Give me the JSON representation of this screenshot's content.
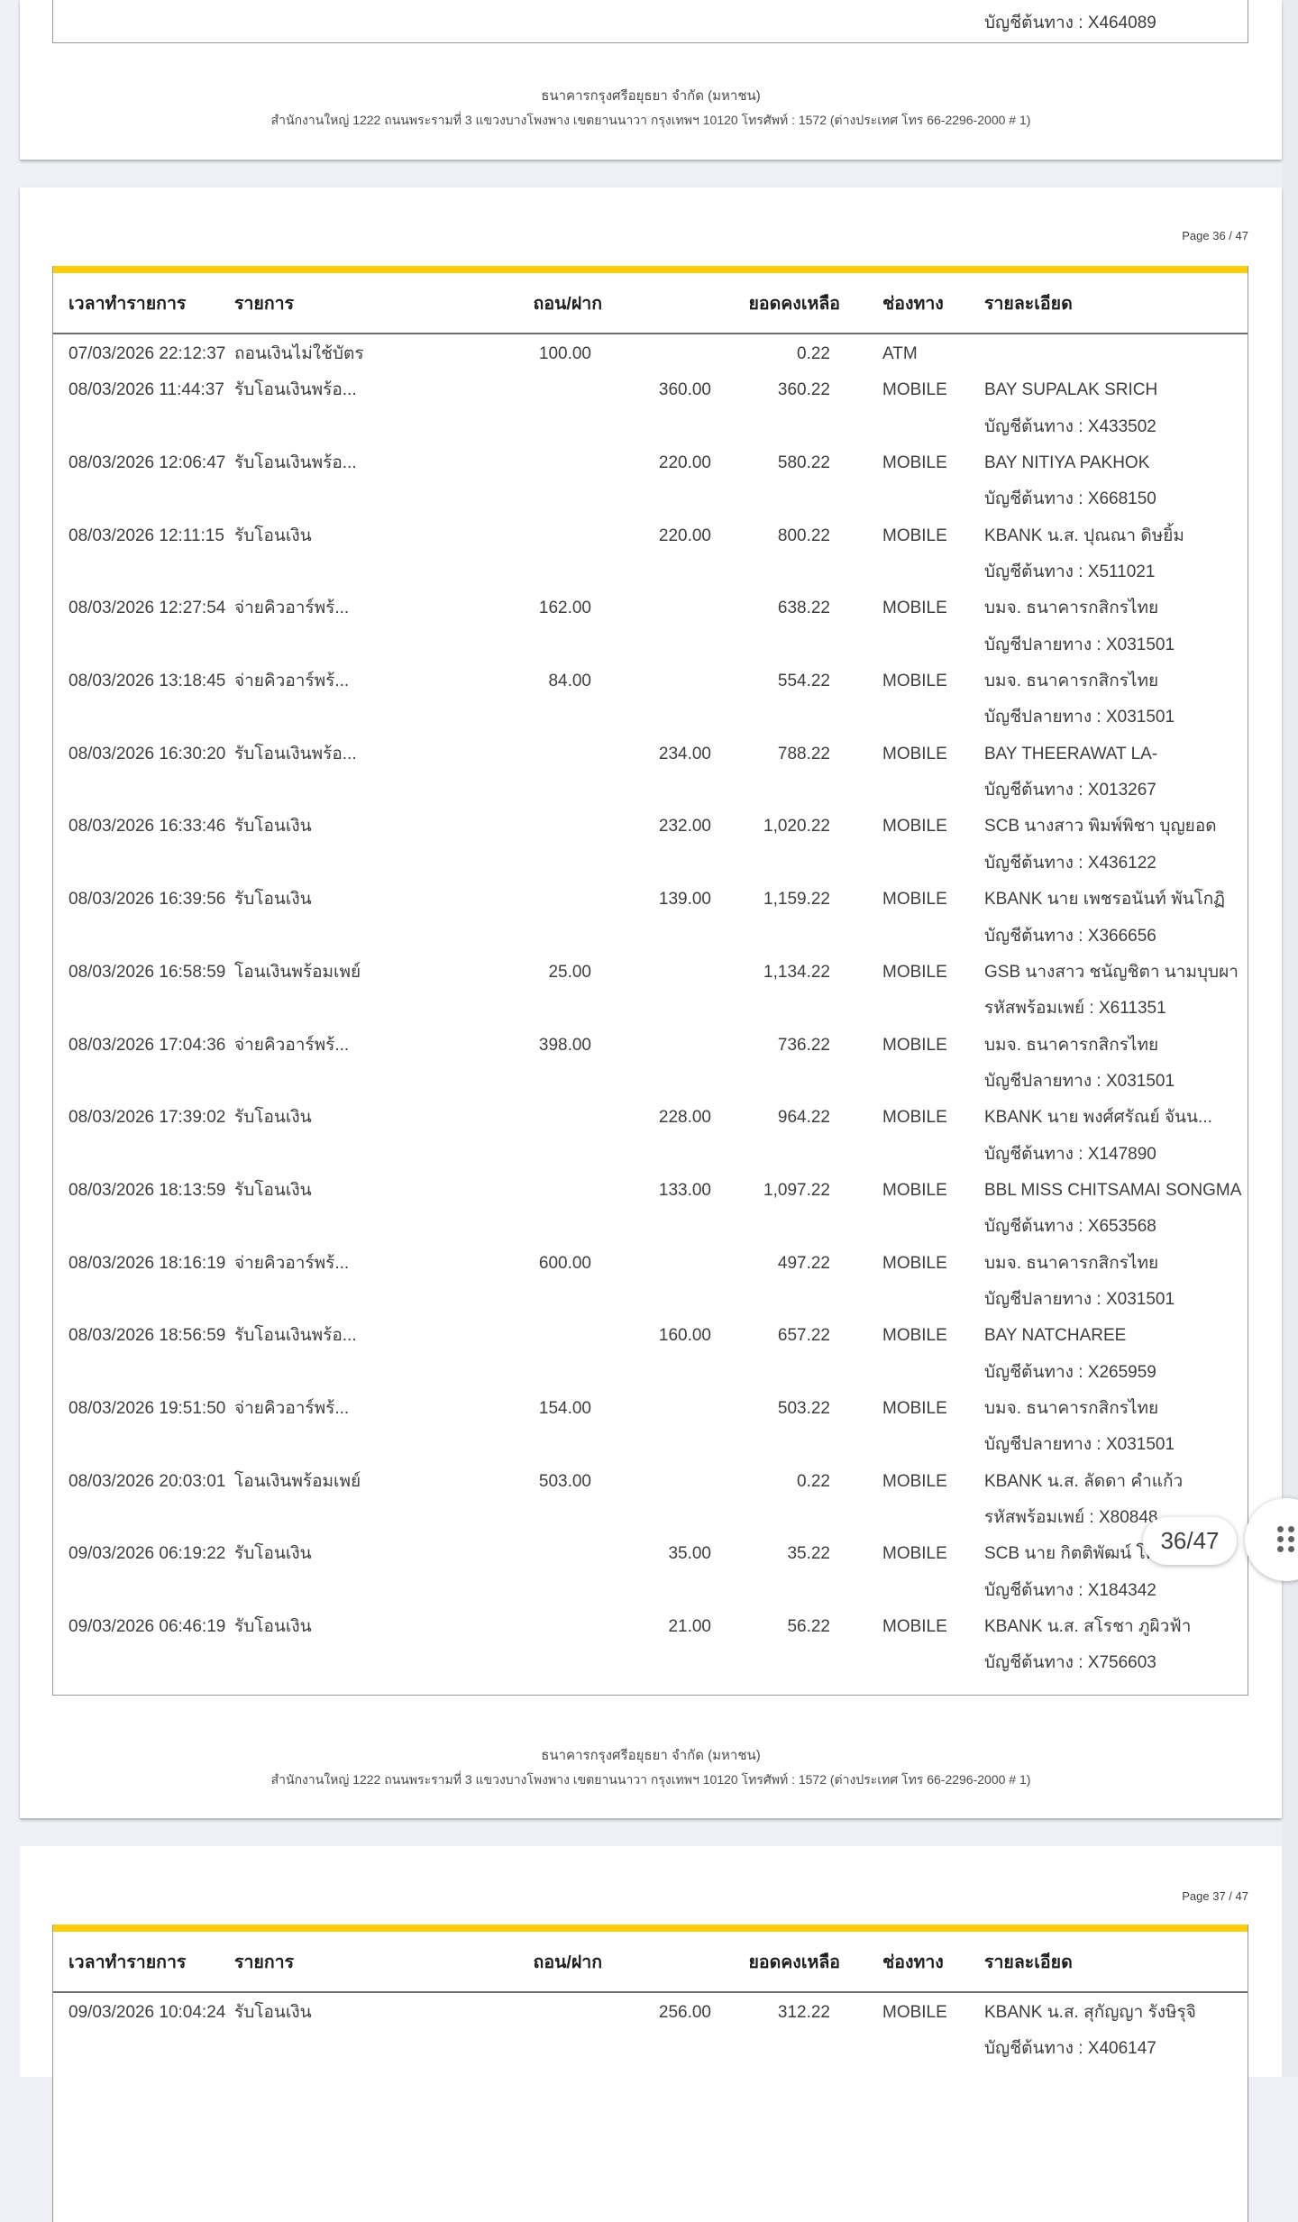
{
  "viewer": {
    "page_indicator": "36/47",
    "colors": {
      "accent_yellow": "#fbce07",
      "canvas_bg": "#eef0f5",
      "scroll_track": "#e9ebf0",
      "page_bg": "#ffffff",
      "table_border": "#979797",
      "text": "#3e3e3e"
    }
  },
  "columns": [
    "เวลาทำรายการ",
    "รายการ",
    "ถอน/ฝาก",
    "ยอดคงเหลือ",
    "ช่องทาง",
    "รายละเอียด"
  ],
  "footer": {
    "line1": "ธนาคารกรุงศรีอยุธยา จำกัด (มหาชน)",
    "line2": "สำนักงานใหญ่ 1222 ถนนพระรามที่ 3 แขวงบางโพงพาง เขตยานนาวา กรุงเทพฯ 10120 โทรศัพท์ : 1572 (ต่างประเทศ โทร 66-2296-2000 # 1)"
  },
  "page35": {
    "lines": [
      {
        "det": "บัญชีต้นทาง : X464089"
      }
    ]
  },
  "page36": {
    "label": "Page 36 / 47",
    "lines": [
      {
        "t": "07/03/2026 22:12:37",
        "d": "ถอนเงินไม่ใช้บัตร",
        "w": "100.00",
        "bal": "0.22",
        "ch": "ATM"
      },
      {
        "t": "08/03/2026 11:44:37",
        "d": "รับโอนเงินพร้อ...",
        "dep": "360.00",
        "bal": "360.22",
        "ch": "MOBILE",
        "det": "BAY SUPALAK SRICH"
      },
      {
        "det": "บัญชีต้นทาง : X433502"
      },
      {
        "t": "08/03/2026 12:06:47",
        "d": "รับโอนเงินพร้อ...",
        "dep": "220.00",
        "bal": "580.22",
        "ch": "MOBILE",
        "det": "BAY NITIYA PAKHOK"
      },
      {
        "det": "บัญชีต้นทาง : X668150"
      },
      {
        "t": "08/03/2026 12:11:15",
        "d": "รับโอนเงิน",
        "dep": "220.00",
        "bal": "800.22",
        "ch": "MOBILE",
        "det": "KBANK น.ส. ปุณณา ดิษยิ้ม"
      },
      {
        "det": "บัญชีต้นทาง : X511021"
      },
      {
        "t": "08/03/2026 12:27:54",
        "d": "จ่ายคิวอาร์พร้...",
        "w": "162.00",
        "bal": "638.22",
        "ch": "MOBILE",
        "det": "บมจ. ธนาคารกสิกรไทย"
      },
      {
        "det": "บัญชีปลายทาง : X031501"
      },
      {
        "t": "08/03/2026 13:18:45",
        "d": "จ่ายคิวอาร์พร้...",
        "w": "84.00",
        "bal": "554.22",
        "ch": "MOBILE",
        "det": "บมจ. ธนาคารกสิกรไทย"
      },
      {
        "det": "บัญชีปลายทาง : X031501"
      },
      {
        "t": "08/03/2026 16:30:20",
        "d": "รับโอนเงินพร้อ...",
        "dep": "234.00",
        "bal": "788.22",
        "ch": "MOBILE",
        "det": "BAY THEERAWAT LA-"
      },
      {
        "det": "บัญชีต้นทาง : X013267"
      },
      {
        "t": "08/03/2026 16:33:46",
        "d": "รับโอนเงิน",
        "dep": "232.00",
        "bal": "1,020.22",
        "ch": "MOBILE",
        "det": "SCB นางสาว พิมพ์พิชา บุญยอด"
      },
      {
        "det": "บัญชีต้นทาง : X436122"
      },
      {
        "t": "08/03/2026 16:39:56",
        "d": "รับโอนเงิน",
        "dep": "139.00",
        "bal": "1,159.22",
        "ch": "MOBILE",
        "det": "KBANK นาย เพชรอนันท์ พันโกฏิ"
      },
      {
        "det": "บัญชีต้นทาง : X366656"
      },
      {
        "t": "08/03/2026 16:58:59",
        "d": "โอนเงินพร้อมเพย์",
        "w": "25.00",
        "bal": "1,134.22",
        "ch": "MOBILE",
        "det": "GSB นางสาว ชนัญชิตา นามบุบผา"
      },
      {
        "det": "รหัสพร้อมเพย์ : X611351"
      },
      {
        "t": "08/03/2026 17:04:36",
        "d": "จ่ายคิวอาร์พร้...",
        "w": "398.00",
        "bal": "736.22",
        "ch": "MOBILE",
        "det": "บมจ. ธนาคารกสิกรไทย"
      },
      {
        "det": "บัญชีปลายทาง : X031501"
      },
      {
        "t": "08/03/2026 17:39:02",
        "d": "รับโอนเงิน",
        "dep": "228.00",
        "bal": "964.22",
        "ch": "MOBILE",
        "det": "KBANK นาย พงศ์ศรัณย์ จันน..."
      },
      {
        "det": "บัญชีต้นทาง : X147890"
      },
      {
        "t": "08/03/2026 18:13:59",
        "d": "รับโอนเงิน",
        "dep": "133.00",
        "bal": "1,097.22",
        "ch": "MOBILE",
        "det": "BBL MISS CHITSAMAI SONGMA"
      },
      {
        "det": "บัญชีต้นทาง : X653568"
      },
      {
        "t": "08/03/2026 18:16:19",
        "d": "จ่ายคิวอาร์พร้...",
        "w": "600.00",
        "bal": "497.22",
        "ch": "MOBILE",
        "det": "บมจ. ธนาคารกสิกรไทย"
      },
      {
        "det": "บัญชีปลายทาง : X031501"
      },
      {
        "t": "08/03/2026 18:56:59",
        "d": "รับโอนเงินพร้อ...",
        "dep": "160.00",
        "bal": "657.22",
        "ch": "MOBILE",
        "det": "BAY NATCHAREE"
      },
      {
        "det": "บัญชีต้นทาง : X265959"
      },
      {
        "t": "08/03/2026 19:51:50",
        "d": "จ่ายคิวอาร์พร้...",
        "w": "154.00",
        "bal": "503.22",
        "ch": "MOBILE",
        "det": "บมจ. ธนาคารกสิกรไทย"
      },
      {
        "det": "บัญชีปลายทาง : X031501"
      },
      {
        "t": "08/03/2026 20:03:01",
        "d": "โอนเงินพร้อมเพย์",
        "w": "503.00",
        "bal": "0.22",
        "ch": "MOBILE",
        "det": "KBANK น.ส. ลัดดา คำแก้ว"
      },
      {
        "det": "รหัสพร้อมเพย์ : X80848"
      },
      {
        "t": "09/03/2026 06:19:22",
        "d": "รับโอนเงิน",
        "dep": "35.00",
        "bal": "35.22",
        "ch": "MOBILE",
        "det": "SCB นาย กิตติพัฒน์ โคตรทิพย์"
      },
      {
        "det": "บัญชีต้นทาง : X184342"
      },
      {
        "t": "09/03/2026 06:46:19",
        "d": "รับโอนเงิน",
        "dep": "21.00",
        "bal": "56.22",
        "ch": "MOBILE",
        "det": "KBANK น.ส. สโรชา ภูผิวฟ้า"
      },
      {
        "det": "บัญชีต้นทาง : X756603"
      }
    ]
  },
  "page37": {
    "label": "Page 37 / 47",
    "lines": [
      {
        "t": "09/03/2026 10:04:24",
        "d": "รับโอนเงิน",
        "dep": "256.00",
        "bal": "312.22",
        "ch": "MOBILE",
        "det": "KBANK น.ส. สุกัญญา รังษิรุจิ"
      },
      {
        "det": "บัญชีต้นทาง : X406147"
      }
    ]
  }
}
